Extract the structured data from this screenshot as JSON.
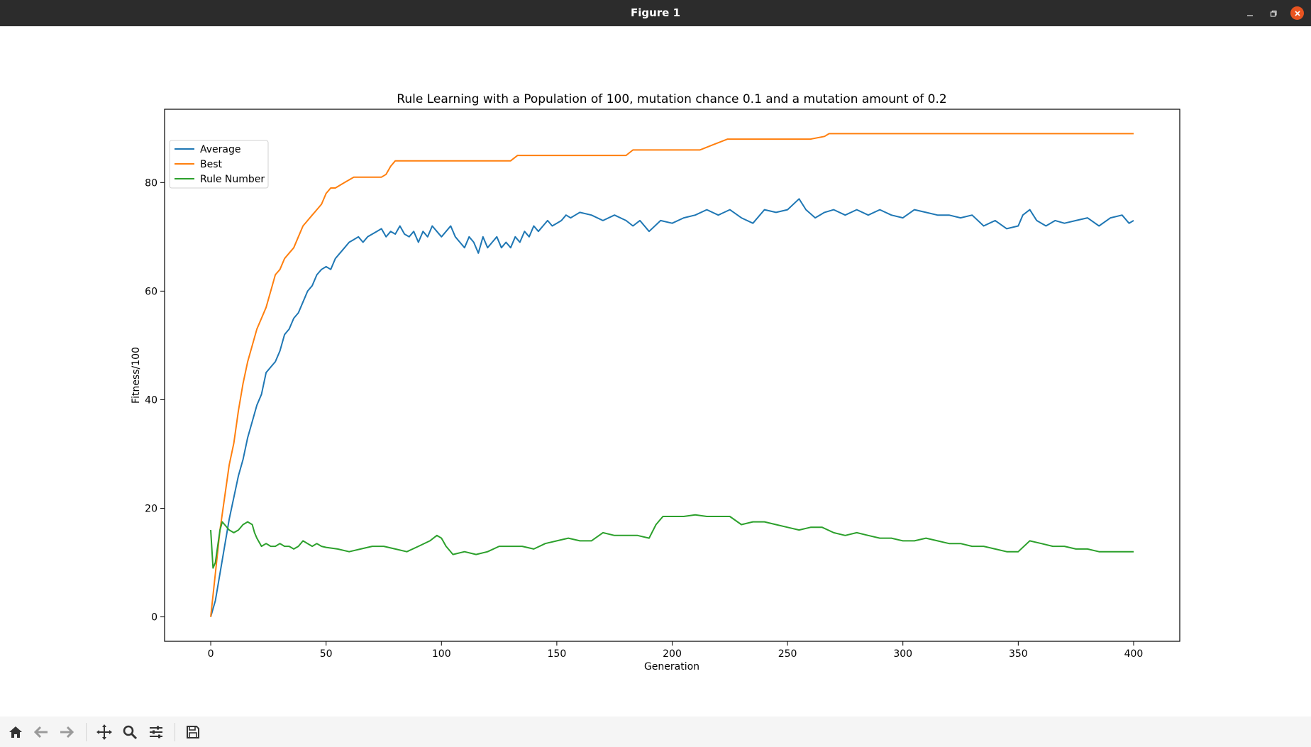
{
  "window": {
    "title": "Figure 1",
    "minimize_icon": "minimize-icon",
    "restore_icon": "restore-icon",
    "close_icon": "close-icon"
  },
  "toolbar": {
    "buttons": [
      "home-icon",
      "back-arrow-icon",
      "forward-arrow-icon",
      "pan-icon",
      "zoom-icon",
      "configure-subplots-icon",
      "save-icon"
    ]
  },
  "chart_data": {
    "type": "line",
    "title": "Rule Learning with a Population of 100, mutation chance 0.1 and a mutation amount of 0.2",
    "xlabel": "Generation",
    "ylabel": "Fitness/100",
    "xlim": [
      -20,
      420
    ],
    "ylim": [
      -4.5,
      93.5
    ],
    "xticks": [
      0,
      50,
      100,
      150,
      200,
      250,
      300,
      350,
      400
    ],
    "yticks": [
      0,
      20,
      40,
      60,
      80
    ],
    "grid": false,
    "legend_position": "top-left",
    "series": [
      {
        "name": "Average",
        "color": "#1f77b4",
        "x": [
          0,
          2,
          4,
          6,
          8,
          10,
          12,
          14,
          16,
          18,
          20,
          22,
          24,
          26,
          28,
          30,
          32,
          34,
          36,
          38,
          40,
          42,
          44,
          46,
          48,
          50,
          52,
          54,
          56,
          58,
          60,
          62,
          64,
          66,
          68,
          70,
          72,
          74,
          76,
          78,
          80,
          82,
          84,
          86,
          88,
          90,
          92,
          94,
          96,
          98,
          100,
          102,
          104,
          106,
          108,
          110,
          112,
          114,
          116,
          118,
          120,
          122,
          124,
          126,
          128,
          130,
          132,
          134,
          136,
          138,
          140,
          142,
          144,
          146,
          148,
          150,
          152,
          154,
          156,
          158,
          160,
          165,
          170,
          175,
          180,
          183,
          186,
          190,
          195,
          200,
          205,
          210,
          215,
          220,
          225,
          230,
          235,
          240,
          245,
          250,
          255,
          258,
          262,
          266,
          270,
          275,
          280,
          285,
          290,
          295,
          300,
          305,
          310,
          315,
          320,
          325,
          330,
          335,
          340,
          345,
          350,
          352,
          355,
          358,
          362,
          366,
          370,
          375,
          380,
          385,
          390,
          395,
          398,
          400
        ],
        "values": [
          0,
          3,
          8,
          13,
          18,
          22,
          26,
          29,
          33,
          36,
          39,
          41,
          45,
          46,
          47,
          49,
          52,
          53,
          55,
          56,
          58,
          60,
          61,
          63,
          64,
          64.5,
          64,
          66,
          67,
          68,
          69,
          69.5,
          70,
          69,
          70,
          70.5,
          71,
          71.5,
          70,
          71,
          70.5,
          72,
          70.5,
          70,
          71,
          69,
          71,
          70,
          72,
          71,
          70,
          71,
          72,
          70,
          69,
          68,
          70,
          69,
          67,
          70,
          68,
          69,
          70,
          68,
          69,
          68,
          70,
          69,
          71,
          70,
          72,
          71,
          72,
          73,
          72,
          72.5,
          73,
          74,
          73.5,
          74,
          74.5,
          74,
          73,
          74,
          73,
          72,
          73,
          71,
          73,
          72.5,
          73.5,
          74,
          75,
          74,
          75,
          73.5,
          72.5,
          75,
          74.5,
          75,
          77,
          75,
          73.5,
          74.5,
          75,
          74,
          75,
          74,
          75,
          74,
          73.5,
          75,
          74.5,
          74,
          74,
          73.5,
          74,
          72,
          73,
          71.5,
          72,
          74,
          75,
          73,
          72,
          73,
          72.5,
          73,
          73.5,
          72,
          73.5,
          74,
          72.5,
          73
        ]
      },
      {
        "name": "Best",
        "color": "#ff7f0e",
        "x": [
          0,
          2,
          4,
          6,
          8,
          10,
          12,
          14,
          16,
          18,
          20,
          22,
          24,
          26,
          28,
          30,
          32,
          34,
          36,
          38,
          40,
          42,
          44,
          46,
          48,
          50,
          52,
          54,
          56,
          58,
          60,
          62,
          64,
          66,
          68,
          70,
          72,
          74,
          76,
          78,
          80,
          100,
          120,
          130,
          133,
          150,
          170,
          180,
          183,
          200,
          212,
          218,
          224,
          240,
          260,
          266,
          268,
          300,
          350,
          400
        ],
        "values": [
          0,
          8,
          16,
          22,
          28,
          32,
          38,
          43,
          47,
          50,
          53,
          55,
          57,
          60,
          63,
          64,
          66,
          67,
          68,
          70,
          72,
          73,
          74,
          75,
          76,
          78,
          79,
          79,
          79.5,
          80,
          80.5,
          81,
          81,
          81,
          81,
          81,
          81,
          81,
          81.5,
          83,
          84,
          84,
          84,
          84,
          85,
          85,
          85,
          85,
          86,
          86,
          86,
          87,
          88,
          88,
          88,
          88.5,
          89,
          89,
          89,
          89
        ]
      },
      {
        "name": "Rule Number",
        "color": "#2ca02c",
        "x": [
          0,
          1,
          2,
          3,
          4,
          5,
          6,
          8,
          10,
          12,
          14,
          16,
          18,
          19,
          20,
          22,
          24,
          26,
          28,
          30,
          32,
          34,
          36,
          38,
          40,
          42,
          44,
          46,
          48,
          50,
          55,
          60,
          65,
          70,
          75,
          80,
          85,
          90,
          95,
          98,
          100,
          102,
          105,
          110,
          115,
          120,
          125,
          130,
          135,
          140,
          145,
          150,
          155,
          160,
          165,
          170,
          175,
          180,
          185,
          190,
          193,
          196,
          200,
          205,
          210,
          215,
          220,
          225,
          230,
          235,
          240,
          245,
          250,
          255,
          260,
          265,
          270,
          275,
          280,
          285,
          290,
          295,
          300,
          305,
          310,
          315,
          320,
          325,
          330,
          335,
          340,
          345,
          350,
          355,
          360,
          365,
          370,
          375,
          380,
          385,
          390,
          395,
          400
        ],
        "values": [
          16,
          9,
          10,
          13,
          16,
          17.5,
          17,
          16,
          15.5,
          16,
          17,
          17.5,
          17,
          15.5,
          14.5,
          13,
          13.5,
          13,
          13,
          13.5,
          13,
          13,
          12.5,
          13,
          14,
          13.5,
          13,
          13.5,
          13,
          12.8,
          12.5,
          12,
          12.5,
          13,
          13,
          12.5,
          12,
          13,
          14,
          15,
          14.5,
          13,
          11.5,
          12,
          11.5,
          12,
          13,
          13,
          13,
          12.5,
          13.5,
          14,
          14.5,
          14,
          14,
          15.5,
          15,
          15,
          15,
          14.5,
          17,
          18.5,
          18.5,
          18.5,
          18.8,
          18.5,
          18.5,
          18.5,
          17,
          17.5,
          17.5,
          17,
          16.5,
          16,
          16.5,
          16.5,
          15.5,
          15,
          15.5,
          15,
          14.5,
          14.5,
          14,
          14,
          14.5,
          14,
          13.5,
          13.5,
          13,
          13,
          12.5,
          12,
          12,
          14,
          13.5,
          13,
          13,
          12.5,
          12.5,
          12,
          12,
          12,
          12
        ]
      }
    ]
  }
}
